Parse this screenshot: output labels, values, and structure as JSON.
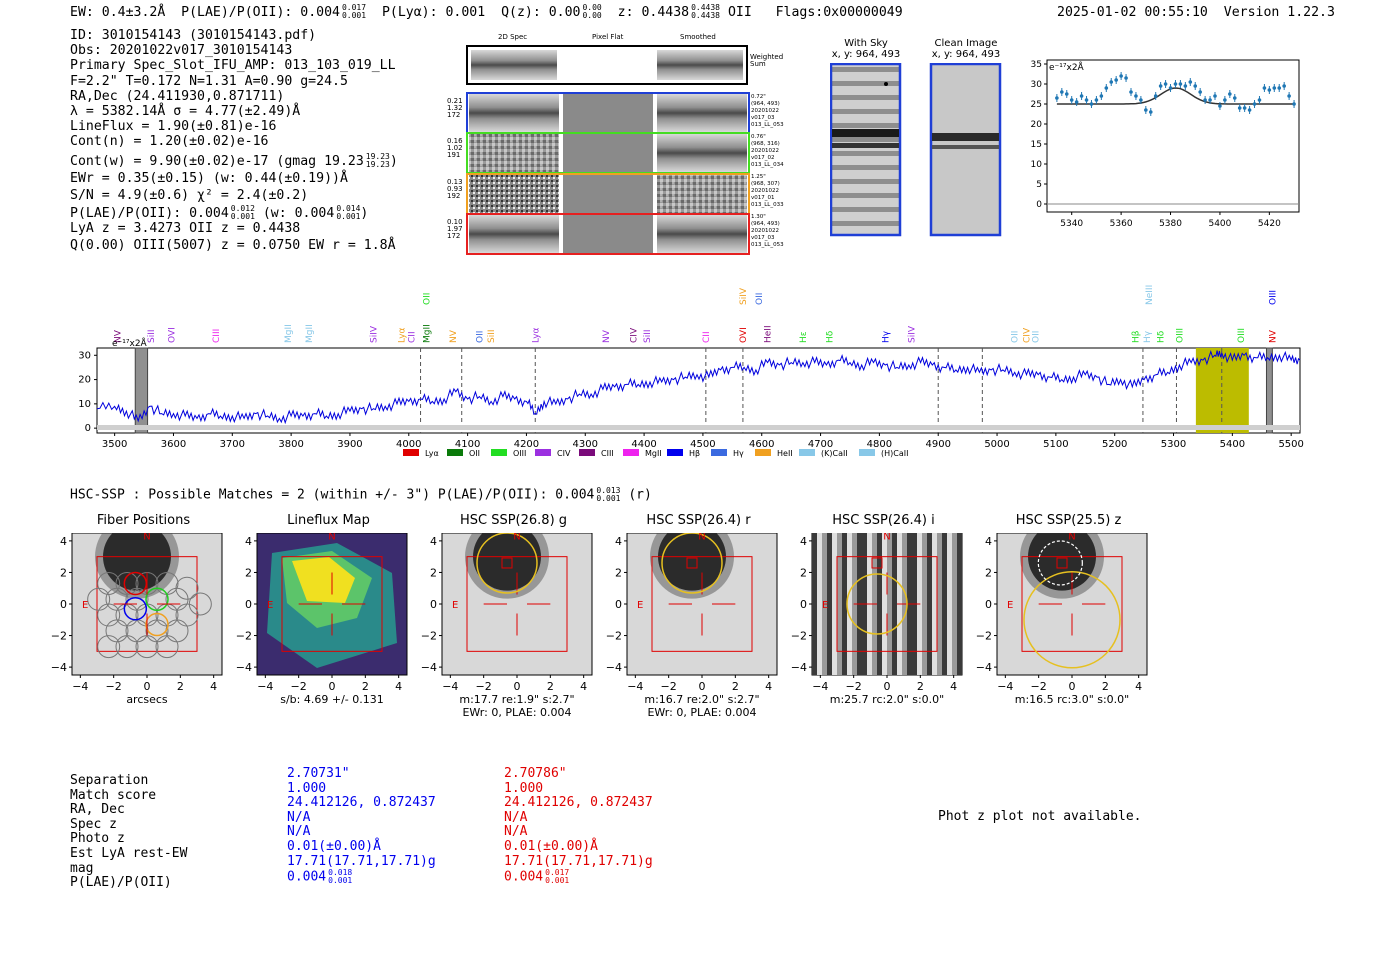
{
  "header": {
    "ew": "EW: 0.4±3.2Å",
    "plae_label": "P(LAE)/P(OII): 0.004",
    "plae_sup": "0.017",
    "plae_subv": "0.001",
    "plya": "P(Lyα): 0.001",
    "qz_label": "Q(z): 0.00",
    "qz_sup": "0.00",
    "qz_subv": "0.00",
    "z_label": "z: 0.4438",
    "z_sup": "0.4438",
    "z_subv": "0.4438",
    "z_line": "OII",
    "flags": "Flags:0x00000049",
    "timestamp": "2025-01-02 00:55:10",
    "version": "Version 1.22.3"
  },
  "info": {
    "lines": [
      "ID: 3010154143 (3010154143.pdf)",
      "Obs: 20201022v017_3010154143",
      "Primary Spec_Slot_IFU_AMP: 013_103_019_LL",
      "F=2.2\"  T=0.172  N=1.31  A=0.90  g=24.5",
      "RA,Dec (24.411930,0.871711)",
      "λ = 5382.14Å  σ = 4.77(±2.49)Å",
      "LineFlux = 1.90(±0.81)e-16",
      "Cont(n) = 1.20(±0.02)e-16"
    ],
    "contw": "Cont(w) = 9.90(±0.02)e-17 (gmag 19.23",
    "contw_sup": "19.23",
    "contw_subv": "19.23",
    "contw_end": ")",
    "ewr": "EWr = 0.35(±0.15) (w: 0.44(±0.19))Å",
    "sn": "S/N = 4.9(±0.6)  χ² = 2.4(±0.2)",
    "plae": "P(LAE)/P(OII): 0.004",
    "plae_sup": "0.012",
    "plae_subv": "0.001",
    "plae_w": "(w: 0.004",
    "plae_w_sup": "0.014",
    "plae_w_subv": "0.001",
    "plae_w_end": ")",
    "lya_oii": "LyA z = 3.4273  OII z = 0.4438",
    "q_oiii": "Q(0.00) OIII(5007) z = 0.0750  EW r = 1.8Å"
  },
  "cutouts": {
    "col_headers": [
      "2D Spec",
      "Pixel Flat",
      "Smoothed"
    ],
    "weighted": "Weighted Sum",
    "rows": [
      {
        "left": [
          "0.21",
          "1.32",
          "172"
        ],
        "right": [
          "0.72\"",
          "(964, 493)",
          "20201022",
          "v017_03",
          "013_LL_053"
        ],
        "color": "#1f3fd6"
      },
      {
        "left": [
          "0.16",
          "1.02",
          "191"
        ],
        "right": [
          "0.76\"",
          "(968, 316)",
          "20201022",
          "v017_02",
          "013_LL_034"
        ],
        "color": "#44dd22"
      },
      {
        "left": [
          "0.13",
          "0.93",
          "192"
        ],
        "right": [
          "1.25\"",
          "(968, 307)",
          "20201022",
          "v017_01",
          "013_LL_033"
        ],
        "color": "#f0a020"
      },
      {
        "left": [
          "0.10",
          "1.97",
          "172"
        ],
        "right": [
          "1.30\"",
          "(964, 493)",
          "20201022",
          "v017_03",
          "013_LL_053"
        ],
        "color": "#e62020"
      }
    ]
  },
  "sky": {
    "with_sky_title": "With Sky",
    "with_sky_xy": "x, y: 964, 493",
    "clean_title": "Clean Image",
    "clean_xy": "x, y: 964, 493"
  },
  "zoom_chart": {
    "scale_label": "e⁻¹⁷x2Å",
    "yticks": [
      "35",
      "30",
      "25",
      "20",
      "15",
      "10",
      "5",
      "0"
    ],
    "xticks": [
      "5340",
      "5360",
      "5380",
      "5400",
      "5420"
    ]
  },
  "full_spectrum": {
    "scale_label": "e⁻¹⁷x2Å",
    "yticks": [
      "30",
      "20",
      "10",
      "0"
    ],
    "xticks": [
      "3500",
      "3600",
      "3700",
      "3800",
      "3900",
      "4000",
      "4100",
      "4200",
      "4300",
      "4400",
      "4500",
      "4600",
      "4700",
      "4800",
      "4900",
      "5000",
      "5100",
      "5200",
      "5300",
      "5400",
      "5500"
    ],
    "legend": [
      {
        "label": "Lyα",
        "color": "#e00000"
      },
      {
        "label": "OII",
        "color": "#0a7a0a"
      },
      {
        "label": "OIII",
        "color": "#22dd22"
      },
      {
        "label": "CIV",
        "color": "#9b30e0"
      },
      {
        "label": "CIII",
        "color": "#7a0a7a"
      },
      {
        "label": "MgII",
        "color": "#ee22ee"
      },
      {
        "label": "Hβ",
        "color": "#0000ee"
      },
      {
        "label": "Hγ",
        "color": "#3b6ae0"
      },
      {
        "label": "HeII",
        "color": "#f0a020"
      },
      {
        "label": "(K)CaII",
        "color": "#88c8e8"
      },
      {
        "label": "(H)CaII",
        "color": "#88c8e8"
      }
    ],
    "lines_low": [
      {
        "name": "NV",
        "w": 3505,
        "color": "#7a0a7a"
      },
      {
        "name": "SiII",
        "w": 3562,
        "color": "#9b30e0"
      },
      {
        "name": "OVI",
        "w": 3597,
        "color": "#9b30e0"
      },
      {
        "name": "CIII",
        "w": 3672,
        "color": "#ee22ee"
      },
      {
        "name": "MgII",
        "w": 3795,
        "color": "#88c8e8"
      },
      {
        "name": "MgII",
        "w": 3830,
        "color": "#88c8e8"
      },
      {
        "name": "SiIV",
        "w": 3940,
        "color": "#9b30e0"
      },
      {
        "name": "Lyα",
        "w": 3988,
        "color": "#f0a020"
      },
      {
        "name": "CII",
        "w": 4005,
        "color": "#9b30e0"
      },
      {
        "name": "MgII",
        "w": 4030,
        "color": "#0a7a0a"
      },
      {
        "name": "NV",
        "w": 4075,
        "color": "#f0a020"
      },
      {
        "name": "OII",
        "w": 4120,
        "color": "#3b6ae0"
      },
      {
        "name": "SiII",
        "w": 4140,
        "color": "#f0a020"
      },
      {
        "name": "Lyα",
        "w": 4215,
        "color": "#9b30e0"
      },
      {
        "name": "NV",
        "w": 4335,
        "color": "#9b30e0"
      },
      {
        "name": "CIV",
        "w": 4382,
        "color": "#7a0a7a"
      },
      {
        "name": "SiII",
        "w": 4405,
        "color": "#9b30e0"
      },
      {
        "name": "CII",
        "w": 4505,
        "color": "#ee22ee"
      },
      {
        "name": "OVI",
        "w": 4568,
        "color": "#e00000"
      },
      {
        "name": "HeII",
        "w": 4610,
        "color": "#7a0a7a"
      },
      {
        "name": "Hε",
        "w": 4670,
        "color": "#22dd22"
      },
      {
        "name": "Hδ",
        "w": 4715,
        "color": "#22dd22"
      },
      {
        "name": "Hγ",
        "w": 4810,
        "color": "#0000ee"
      },
      {
        "name": "SiIV",
        "w": 4855,
        "color": "#9b30e0"
      },
      {
        "name": "OII",
        "w": 5030,
        "color": "#88c8e8"
      },
      {
        "name": "CIV",
        "w": 5050,
        "color": "#f0a020"
      },
      {
        "name": "OII",
        "w": 5065,
        "color": "#88c8e8"
      },
      {
        "name": "Hβ",
        "w": 5235,
        "color": "#22dd22"
      },
      {
        "name": "Hγ",
        "w": 5255,
        "color": "#88c8e8"
      },
      {
        "name": "Hδ",
        "w": 5278,
        "color": "#22dd22"
      },
      {
        "name": "OIII",
        "w": 5310,
        "color": "#22dd22"
      },
      {
        "name": "OIII",
        "w": 5415,
        "color": "#22dd22"
      },
      {
        "name": "NV",
        "w": 5468,
        "color": "#e00000"
      }
    ],
    "lines_high": [
      {
        "name": "OII",
        "w": 4030,
        "color": "#22dd22"
      },
      {
        "name": "SiIV",
        "w": 4568,
        "color": "#f0a020"
      },
      {
        "name": "OII",
        "w": 4595,
        "color": "#3b6ae0"
      },
      {
        "name": "NeIII",
        "w": 5258,
        "color": "#88c8e8"
      },
      {
        "name": "OIII",
        "w": 5468,
        "color": "#0000ee"
      }
    ],
    "dashed": [
      4020,
      4090,
      4215,
      4505,
      4568,
      4900,
      4975,
      5248,
      5305,
      5382
    ],
    "highlight": [
      5338,
      5428
    ],
    "masked": [
      [
        3535,
        3556
      ],
      [
        5458,
        5468
      ]
    ]
  },
  "hsc": {
    "title": "HSC-SSP : Possible Matches = 2 (within +/- 3\")  P(LAE)/P(OII): 0.004",
    "title_sup": "0.013",
    "title_subv": "0.001",
    "title_end": "(r)",
    "panels": [
      {
        "title": "Fiber Positions",
        "cap1": "arcsecs",
        "cap2": ""
      },
      {
        "title": "Lineflux Map",
        "cap1": "s/b: 4.69 +/- 0.131",
        "cap2": ""
      },
      {
        "title": "HSC SSP(26.8) g",
        "cap1": "m:17.7  re:1.9\"  s:2.7\"",
        "cap2": "EWr: 0, PLAE: 0.004"
      },
      {
        "title": "HSC SSP(26.4) r",
        "cap1": "m:16.7  re:2.0\"  s:2.7\"",
        "cap2": "EWr: 0, PLAE: 0.004"
      },
      {
        "title": "HSC SSP(26.4) i",
        "cap1": "m:25.7 rc:2.0\"  s:0.0\"",
        "cap2": ""
      },
      {
        "title": "HSC SSP(25.5) z",
        "cap1": "m:16.5 rc:3.0\"  s:0.0\"",
        "cap2": ""
      }
    ],
    "axis_ticks": [
      "4",
      "2",
      "0",
      "−2",
      "−4"
    ],
    "x_ticks": [
      "−4",
      "−2",
      "0",
      "2",
      "4"
    ],
    "north": "N",
    "east": "E"
  },
  "matches": {
    "labels": [
      "Separation",
      "Match score",
      "RA, Dec",
      "Spec z",
      "Photo z",
      "Est LyA rest-EW",
      "mag",
      "P(LAE)/P(OII)"
    ],
    "col1": [
      "2.70731\"",
      "1.000",
      "24.412126, 0.872437",
      "N/A",
      "N/A",
      "0.01(±0.00)Å",
      "17.71(17.71,17.71)g",
      "0.004"
    ],
    "col1_sup": "0.018",
    "col1_subv": "0.001",
    "col2": [
      "2.70786\"",
      "1.000",
      "24.412126, 0.872437",
      "N/A",
      "N/A",
      "0.01(±0.00)Å",
      "17.71(17.71,17.71)g",
      "0.004"
    ],
    "col2_sup": "0.017",
    "col2_subv": "0.001",
    "photz_msg": "Phot z plot not available."
  },
  "chart_data": [
    {
      "type": "scatter",
      "title": "",
      "xlabel": "",
      "ylabel": "",
      "xlim": [
        5330,
        5432
      ],
      "ylim": [
        -2,
        36
      ],
      "series": [
        {
          "x": [
            5334,
            5336,
            5338,
            5340,
            5342,
            5344,
            5346,
            5348,
            5350,
            5352,
            5354,
            5356,
            5358,
            5360,
            5362,
            5364,
            5366,
            5368,
            5370,
            5372,
            5374,
            5376,
            5378,
            5380,
            5382,
            5384,
            5386,
            5388,
            5390,
            5392,
            5394,
            5396,
            5398,
            5400,
            5402,
            5404,
            5406,
            5408,
            5410,
            5412,
            5414,
            5416,
            5418,
            5420,
            5422,
            5424,
            5426,
            5428,
            5430
          ],
          "y": [
            26.5,
            28,
            27.5,
            26,
            25.5,
            27,
            26,
            25,
            26,
            27,
            29,
            30.5,
            31,
            32,
            31.5,
            28,
            27,
            26,
            23.5,
            23,
            27,
            29.5,
            30,
            29,
            30,
            30,
            29.5,
            30.5,
            29.5,
            28,
            26,
            26,
            27,
            24.5,
            26,
            27.5,
            26.5,
            24,
            24,
            23.5,
            25,
            26,
            29,
            28.5,
            29,
            29,
            29.5,
            27,
            25
          ]
        }
      ]
    },
    {
      "type": "line",
      "title": "",
      "xlabel": "",
      "ylabel": "",
      "xlim": [
        3470,
        5515
      ],
      "ylim": [
        -2,
        33
      ],
      "series": [
        {
          "x": [
            3470,
            3500,
            3520,
            3540,
            3560,
            3580,
            3600,
            3620,
            3640,
            3660,
            3680,
            3700,
            3720,
            3740,
            3760,
            3780,
            3800,
            3820,
            3840,
            3860,
            3880,
            3900,
            3920,
            3940,
            3960,
            3980,
            4000,
            4020,
            4040,
            4060,
            4080,
            4100,
            4120,
            4140,
            4160,
            4180,
            4200,
            4215,
            4230,
            4250,
            4270,
            4290,
            4310,
            4330,
            4350,
            4370,
            4390,
            4410,
            4430,
            4450,
            4470,
            4490,
            4510,
            4530,
            4550,
            4570,
            4590,
            4610,
            4630,
            4650,
            4670,
            4690,
            4710,
            4730,
            4750,
            4770,
            4790,
            4810,
            4830,
            4850,
            4870,
            4890,
            4910,
            4930,
            4950,
            4970,
            4990,
            5010,
            5030,
            5050,
            5070,
            5090,
            5110,
            5130,
            5150,
            5170,
            5190,
            5210,
            5230,
            5250,
            5270,
            5290,
            5310,
            5330,
            5350,
            5370,
            5382,
            5400,
            5420,
            5440,
            5460,
            5480,
            5500,
            5515
          ],
          "y": [
            8,
            9,
            7,
            3,
            9,
            6,
            6,
            5,
            4,
            6,
            5,
            5,
            4,
            6,
            5,
            4,
            5,
            5,
            6,
            5,
            6,
            7,
            8,
            8,
            9,
            10,
            11,
            12,
            11,
            12,
            15,
            12,
            13,
            11,
            13,
            12,
            11,
            6,
            11,
            10,
            12,
            14,
            14,
            16,
            17,
            18,
            18,
            19,
            19,
            20,
            21,
            22,
            21,
            24,
            25,
            25,
            24,
            27,
            26,
            27,
            27,
            27,
            26,
            28,
            27,
            26,
            27,
            26,
            25,
            26,
            27,
            26,
            25,
            24,
            25,
            23,
            24,
            24,
            23,
            22,
            22,
            21,
            20,
            21,
            22,
            21,
            18,
            20,
            17,
            20,
            22,
            23,
            26,
            27,
            28,
            30,
            31,
            28,
            30,
            29,
            29,
            30,
            28,
            28
          ]
        }
      ]
    }
  ]
}
